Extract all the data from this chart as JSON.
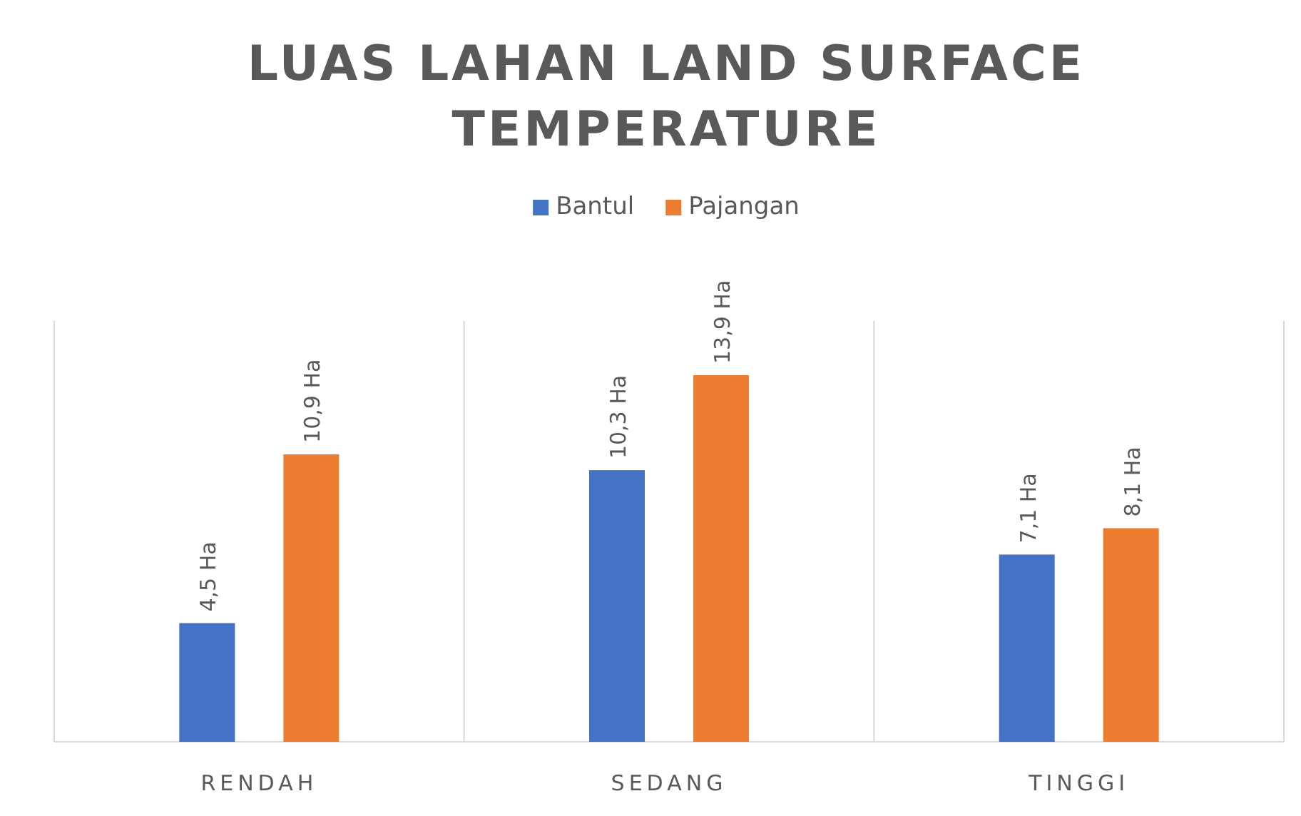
{
  "chart_data": {
    "type": "bar",
    "title": "LUAS LAHAN LAND SURFACE TEMPERATURE",
    "categories": [
      "RENDAH",
      "SEDANG",
      "TINGGI"
    ],
    "series": [
      {
        "name": "Bantul",
        "color": "#4472c4",
        "values": [
          4.5,
          10.3,
          7.1
        ],
        "value_labels": [
          "4,5 Ha",
          "10,3 Ha",
          "7,1 Ha"
        ]
      },
      {
        "name": "Pajangan",
        "color": "#ed7d31",
        "values": [
          10.9,
          13.9,
          8.1
        ],
        "value_labels": [
          "10,9 Ha",
          "13,9 Ha",
          "8,1 Ha"
        ]
      }
    ],
    "grid": "x",
    "legend": "top"
  }
}
